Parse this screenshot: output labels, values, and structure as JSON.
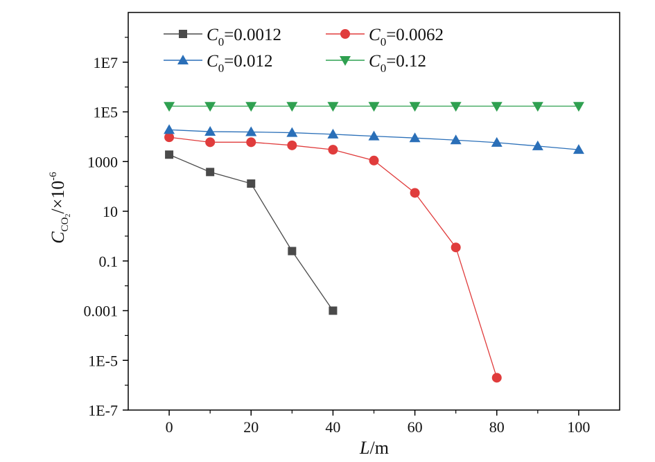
{
  "chart_data": {
    "type": "line",
    "title": "",
    "xlabel": {
      "var": "L",
      "unit": "/m"
    },
    "ylabel": {
      "var": "C",
      "sub": "CO",
      "subsub": "2",
      "unit": "/×10",
      "exp": "-6"
    },
    "x_scale": "linear",
    "y_scale": "log",
    "xlim": [
      -10,
      110
    ],
    "ylim": [
      1e-07,
      1000000000.0
    ],
    "x_ticks": [
      0,
      20,
      40,
      60,
      80,
      100
    ],
    "x_tick_labels": [
      "0",
      "20",
      "40",
      "60",
      "80",
      "100"
    ],
    "y_ticks": [
      1e-07,
      1e-05,
      0.001,
      0.1,
      10,
      1000,
      100000,
      10000000
    ],
    "y_tick_labels": [
      "1E-7",
      "1E-5",
      "0.001",
      "0.1",
      "10",
      "1000",
      "1E5",
      "1E7"
    ],
    "grid": false,
    "legend_position": "top",
    "series": [
      {
        "name": "C0=0.0012",
        "label_var": "C",
        "label_sub": "0",
        "label_value": "=0.0012",
        "color": "#4a4a4a",
        "marker": "square",
        "x": [
          0,
          10,
          20,
          30,
          40
        ],
        "y": [
          1900,
          380,
          130,
          0.25,
          0.001
        ]
      },
      {
        "name": "C0=0.0062",
        "label_var": "C",
        "label_sub": "0",
        "label_value": "=0.0062",
        "color": "#e03c3c",
        "marker": "circle",
        "x": [
          0,
          10,
          20,
          30,
          40,
          50,
          60,
          70,
          80
        ],
        "y": [
          9500,
          6000,
          6000,
          4500,
          3000,
          1100,
          55,
          0.35,
          2e-06
        ]
      },
      {
        "name": "C0=0.012",
        "label_var": "C",
        "label_sub": "0",
        "label_value": "=0.012",
        "color": "#2a6fb8",
        "marker": "triangle-up",
        "x": [
          0,
          10,
          20,
          30,
          40,
          50,
          60,
          70,
          80,
          90,
          100
        ],
        "y": [
          19000,
          16000,
          15500,
          14500,
          12500,
          10500,
          8900,
          7300,
          5800,
          4200,
          3000
        ]
      },
      {
        "name": "C0=0.12",
        "label_var": "C",
        "label_sub": "0",
        "label_value": "=0.12",
        "color": "#2fa050",
        "marker": "triangle-down",
        "x": [
          0,
          10,
          20,
          30,
          40,
          50,
          60,
          70,
          80,
          90,
          100
        ],
        "y": [
          170000,
          170000,
          170000,
          170000,
          170000,
          170000,
          170000,
          170000,
          170000,
          170000,
          170000
        ]
      }
    ]
  }
}
